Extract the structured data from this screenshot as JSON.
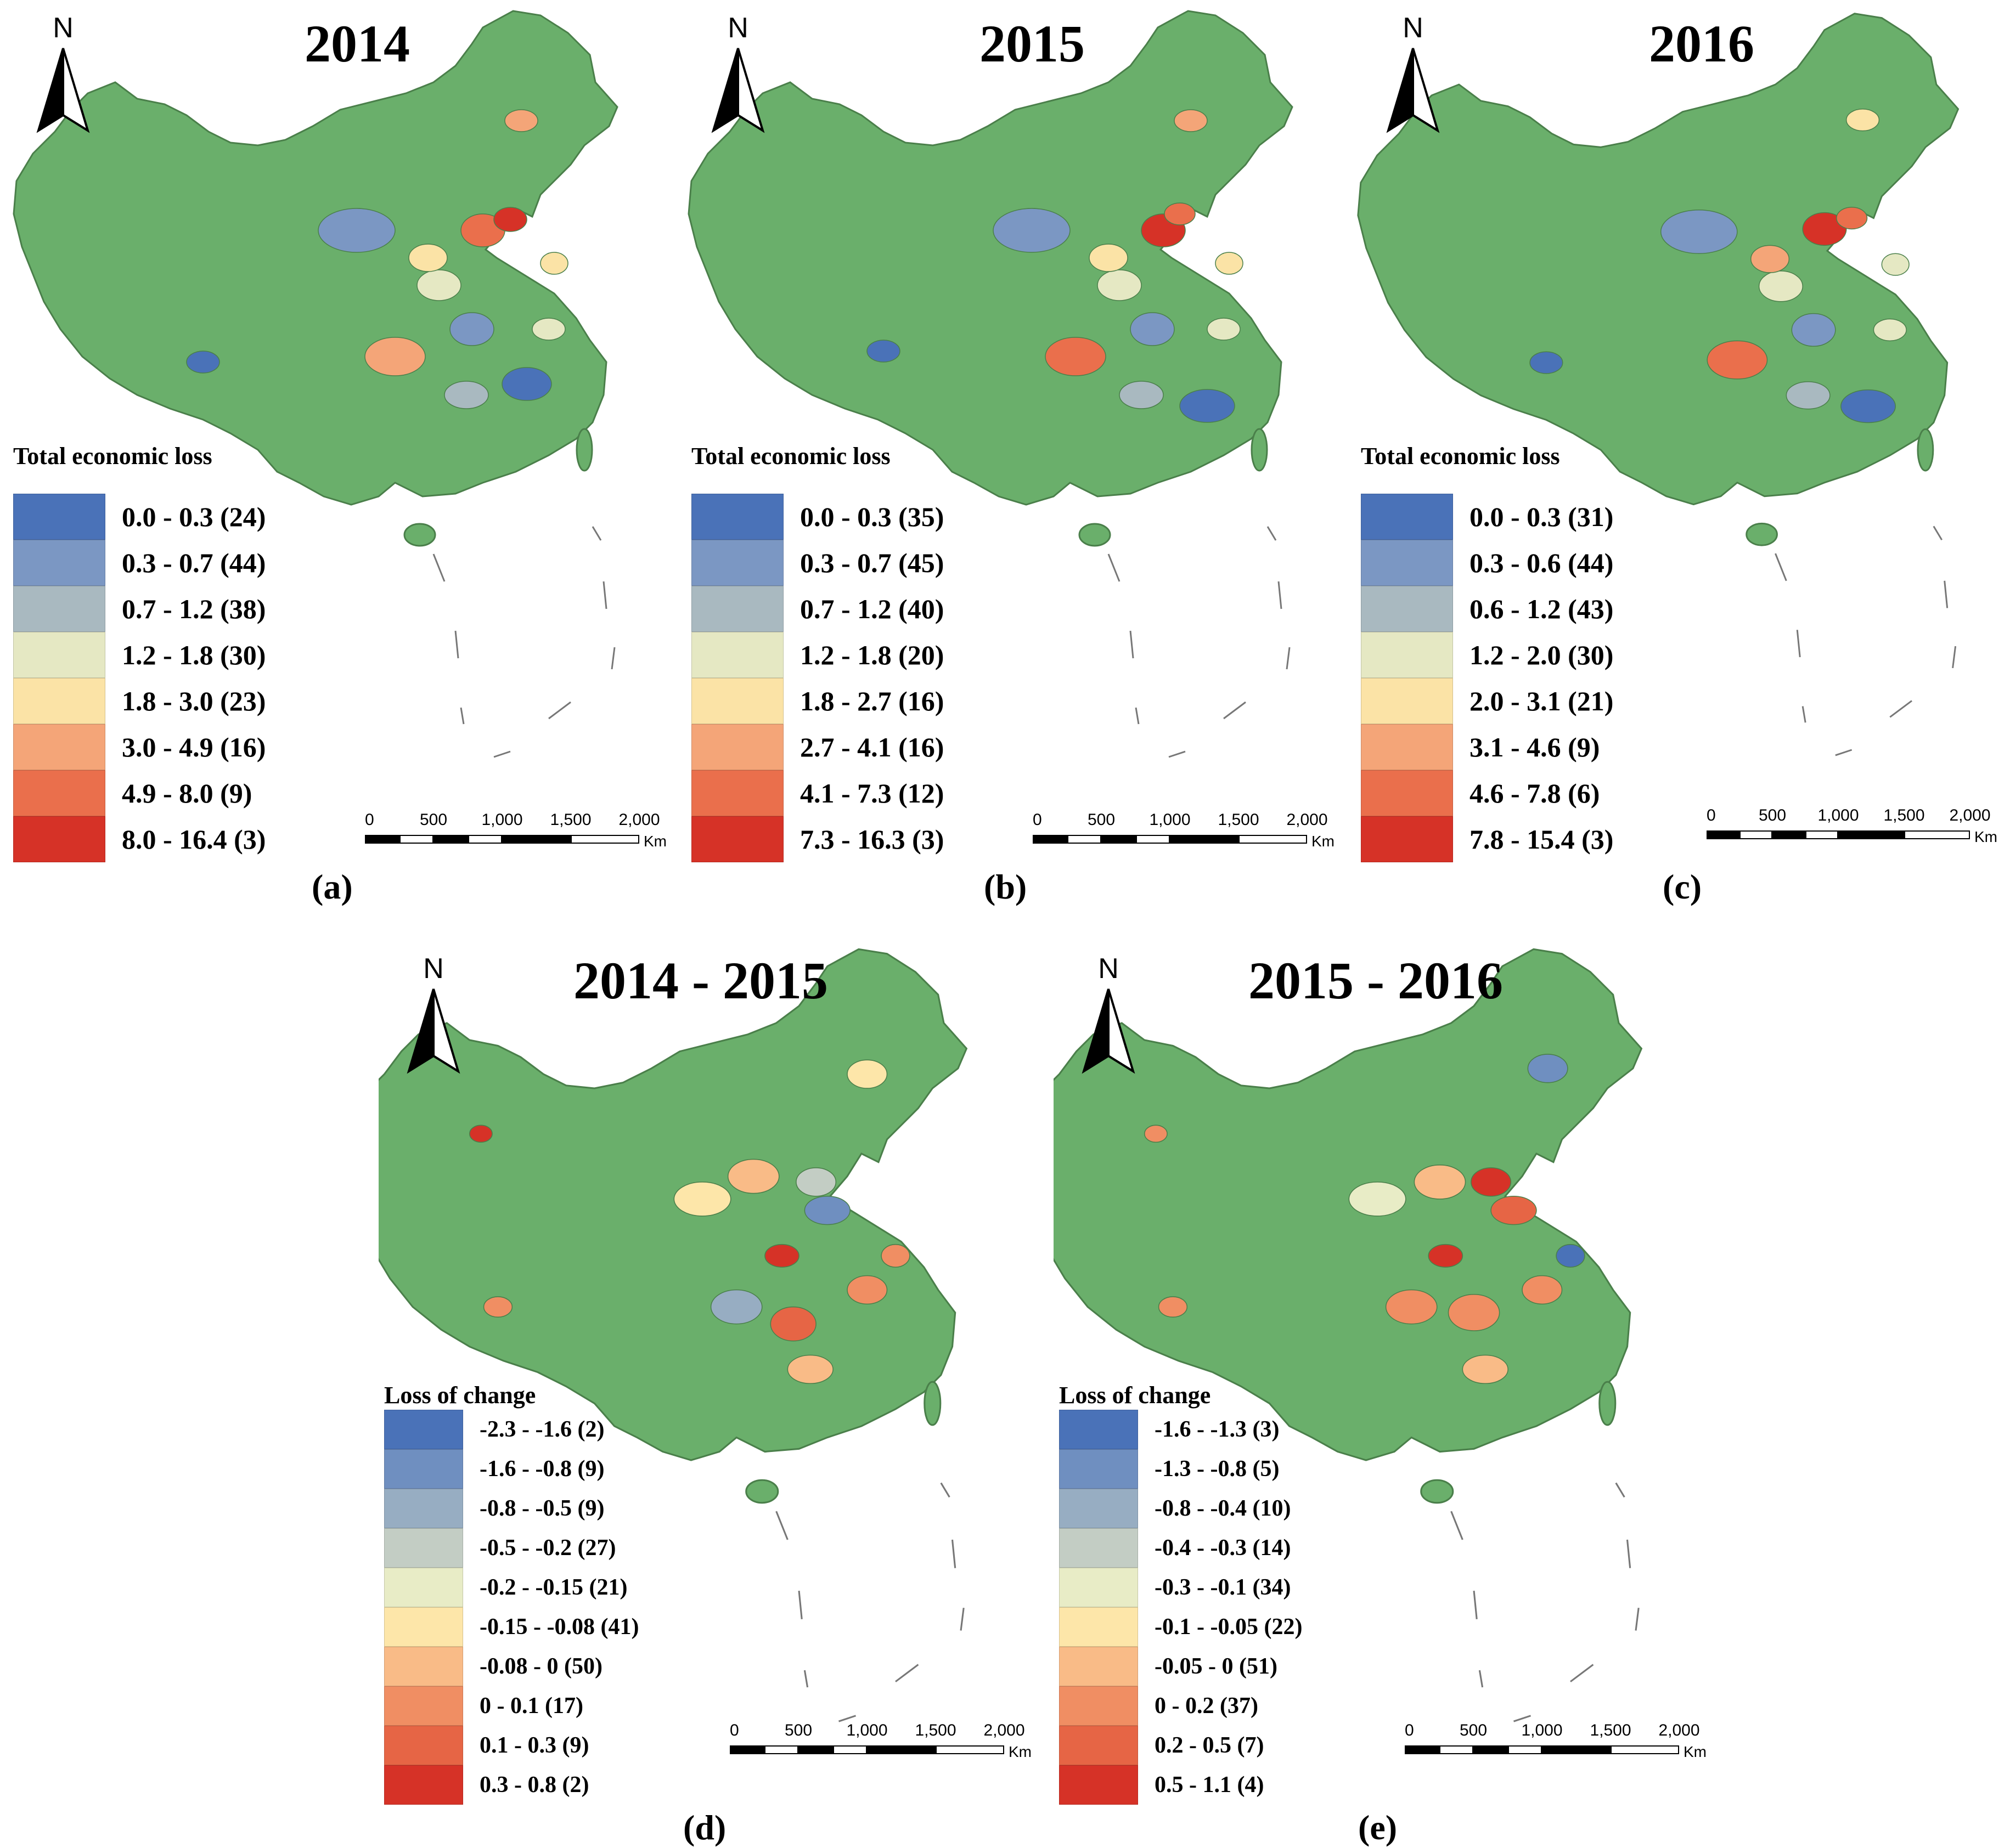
{
  "map_style": {
    "base_color": "#6aaf6b",
    "border_color": "#4a7f4a",
    "island_line_color": "#777777",
    "north_label": "N"
  },
  "panels": [
    {
      "id": "a",
      "title": "2014",
      "caption": "(a)",
      "legend_title": "Total economic loss",
      "classes": [
        {
          "label": "0.0 - 0.3 (24)",
          "color": "#4a72b8"
        },
        {
          "label": "0.3 - 0.7 (44)",
          "color": "#7b97c3"
        },
        {
          "label": "0.7 - 1.2 (38)",
          "color": "#a9b9c0"
        },
        {
          "label": "1.2 - 1.8 (30)",
          "color": "#e5e8c3"
        },
        {
          "label": "1.8 - 3.0 (23)",
          "color": "#fbe3a6"
        },
        {
          "label": "3.0 - 4.9 (16)",
          "color": "#f4a578"
        },
        {
          "label": "4.9 - 8.0 (9)",
          "color": "#ea6f4c"
        },
        {
          "label": "8.0 - 16.4 (3)",
          "color": "#d63227"
        }
      ],
      "scale": {
        "ticks": [
          "0",
          "500",
          "1,000",
          "1,500",
          "2,000"
        ],
        "unit": "Km"
      }
    },
    {
      "id": "b",
      "title": "2015",
      "caption": "(b)",
      "legend_title": "Total economic loss",
      "classes": [
        {
          "label": "0.0 - 0.3 (35)",
          "color": "#4a72b8"
        },
        {
          "label": "0.3 - 0.7 (45)",
          "color": "#7b97c3"
        },
        {
          "label": "0.7 - 1.2 (40)",
          "color": "#a9b9c0"
        },
        {
          "label": "1.2 - 1.8 (20)",
          "color": "#e5e8c3"
        },
        {
          "label": "1.8 - 2.7 (16)",
          "color": "#fbe3a6"
        },
        {
          "label": "2.7 - 4.1 (16)",
          "color": "#f4a578"
        },
        {
          "label": "4.1 - 7.3 (12)",
          "color": "#ea6f4c"
        },
        {
          "label": "7.3 - 16.3 (3)",
          "color": "#d63227"
        }
      ],
      "scale": {
        "ticks": [
          "0",
          "500",
          "1,000",
          "1,500",
          "2,000"
        ],
        "unit": "Km"
      }
    },
    {
      "id": "c",
      "title": "2016",
      "caption": "(c)",
      "legend_title": "Total economic loss",
      "classes": [
        {
          "label": "0.0 - 0.3 (31)",
          "color": "#4a72b8"
        },
        {
          "label": "0.3 - 0.6 (44)",
          "color": "#7b97c3"
        },
        {
          "label": "0.6 - 1.2 (43)",
          "color": "#a9b9c0"
        },
        {
          "label": "1.2 - 2.0 (30)",
          "color": "#e5e8c3"
        },
        {
          "label": "2.0 - 3.1 (21)",
          "color": "#fbe3a6"
        },
        {
          "label": "3.1 - 4.6 (9)",
          "color": "#f4a578"
        },
        {
          "label": "4.6 - 7.8 (6)",
          "color": "#ea6f4c"
        },
        {
          "label": "7.8 - 15.4 (3)",
          "color": "#d63227"
        }
      ],
      "scale": {
        "ticks": [
          "0",
          "500",
          "1,000",
          "1,500",
          "2,000"
        ],
        "unit": "Km"
      }
    },
    {
      "id": "d",
      "title": "2014 - 2015",
      "caption": "(d)",
      "legend_title": "Loss of change",
      "classes": [
        {
          "label": "-2.3 - -1.6 (2)",
          "color": "#4a72b8"
        },
        {
          "label": "-1.6 - -0.8 (9)",
          "color": "#6f8fc0"
        },
        {
          "label": "-0.8 - -0.5 (9)",
          "color": "#97adc2"
        },
        {
          "label": "-0.5 - -0.2 (27)",
          "color": "#c3cdc4"
        },
        {
          "label": "-0.2 - -0.15 (21)",
          "color": "#e8ecc6"
        },
        {
          "label": "-0.15 - -0.08 (41)",
          "color": "#fde6a9"
        },
        {
          "label": "-0.08 - 0 (50)",
          "color": "#f9bb87"
        },
        {
          "label": "0 - 0.1 (17)",
          "color": "#f08e63"
        },
        {
          "label": "0.1 - 0.3 (9)",
          "color": "#e66545"
        },
        {
          "label": "0.3 - 0.8 (2)",
          "color": "#d63227"
        }
      ],
      "scale": {
        "ticks": [
          "0",
          "500",
          "1,000",
          "1,500",
          "2,000"
        ],
        "unit": "Km"
      }
    },
    {
      "id": "e",
      "title": "2015 - 2016",
      "caption": "(e)",
      "legend_title": "Loss of change",
      "classes": [
        {
          "label": "-1.6 - -1.3 (3)",
          "color": "#4a72b8"
        },
        {
          "label": "-1.3 - -0.8 (5)",
          "color": "#6f8fc0"
        },
        {
          "label": "-0.8 - -0.4 (10)",
          "color": "#97adc2"
        },
        {
          "label": "-0.4 - -0.3 (14)",
          "color": "#c3cdc4"
        },
        {
          "label": "-0.3 - -0.1 (34)",
          "color": "#e8ecc6"
        },
        {
          "label": "-0.1 - -0.05 (22)",
          "color": "#fde6a9"
        },
        {
          "label": "-0.05 - 0 (51)",
          "color": "#f9bb87"
        },
        {
          "label": "0 - 0.2 (37)",
          "color": "#f08e63"
        },
        {
          "label": "0.2 - 0.5 (7)",
          "color": "#e66545"
        },
        {
          "label": "0.5 - 1.1 (4)",
          "color": "#d63227"
        }
      ],
      "scale": {
        "ticks": [
          "0",
          "500",
          "1,000",
          "1,500",
          "2,000"
        ],
        "unit": "Km"
      }
    }
  ]
}
